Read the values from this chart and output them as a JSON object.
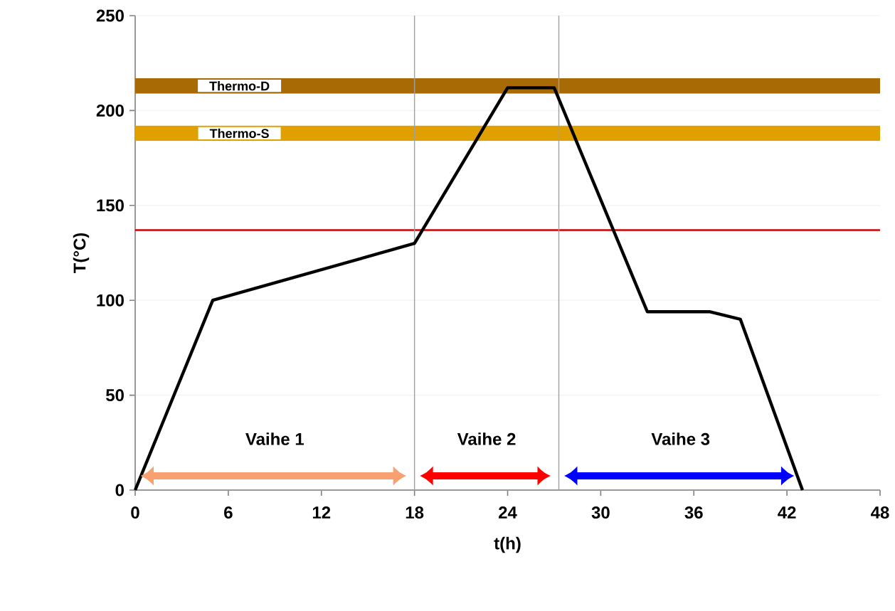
{
  "chart_data": {
    "type": "line",
    "xlabel": "t(h)",
    "ylabel": "T(°C)",
    "x": [
      0,
      5,
      18,
      24,
      27,
      33,
      37,
      39,
      43
    ],
    "series": [
      {
        "color": "#000000",
        "values": [
          0,
          100,
          130,
          212,
          212,
          94,
          94,
          90,
          0
        ]
      }
    ],
    "xlim": [
      0,
      48
    ],
    "xticks": [
      0,
      6,
      12,
      18,
      24,
      30,
      36,
      42,
      48
    ],
    "ylim": [
      0,
      250
    ],
    "yticks": [
      0,
      50,
      100,
      150,
      200,
      250
    ],
    "grid": "y",
    "marker": "none",
    "line_style": "solid",
    "ref_lines": [
      {
        "axis": "y",
        "value": 137,
        "color": "#cc0000"
      },
      {
        "axis": "x",
        "value": 18,
        "color": "#a0a0a0"
      },
      {
        "axis": "x",
        "value": 27.3,
        "color": "#a0a0a0"
      }
    ],
    "bands": [
      {
        "axis": "y",
        "from": 209,
        "to": 217,
        "label": "Thermo-D",
        "color": "#a86a04"
      },
      {
        "axis": "y",
        "from": 184,
        "to": 192,
        "label": "Thermo-S",
        "color": "#e0a000"
      }
    ],
    "annotations": [
      "Vaihe 1",
      "Vaihe 2",
      "Vaihe 3"
    ]
  }
}
